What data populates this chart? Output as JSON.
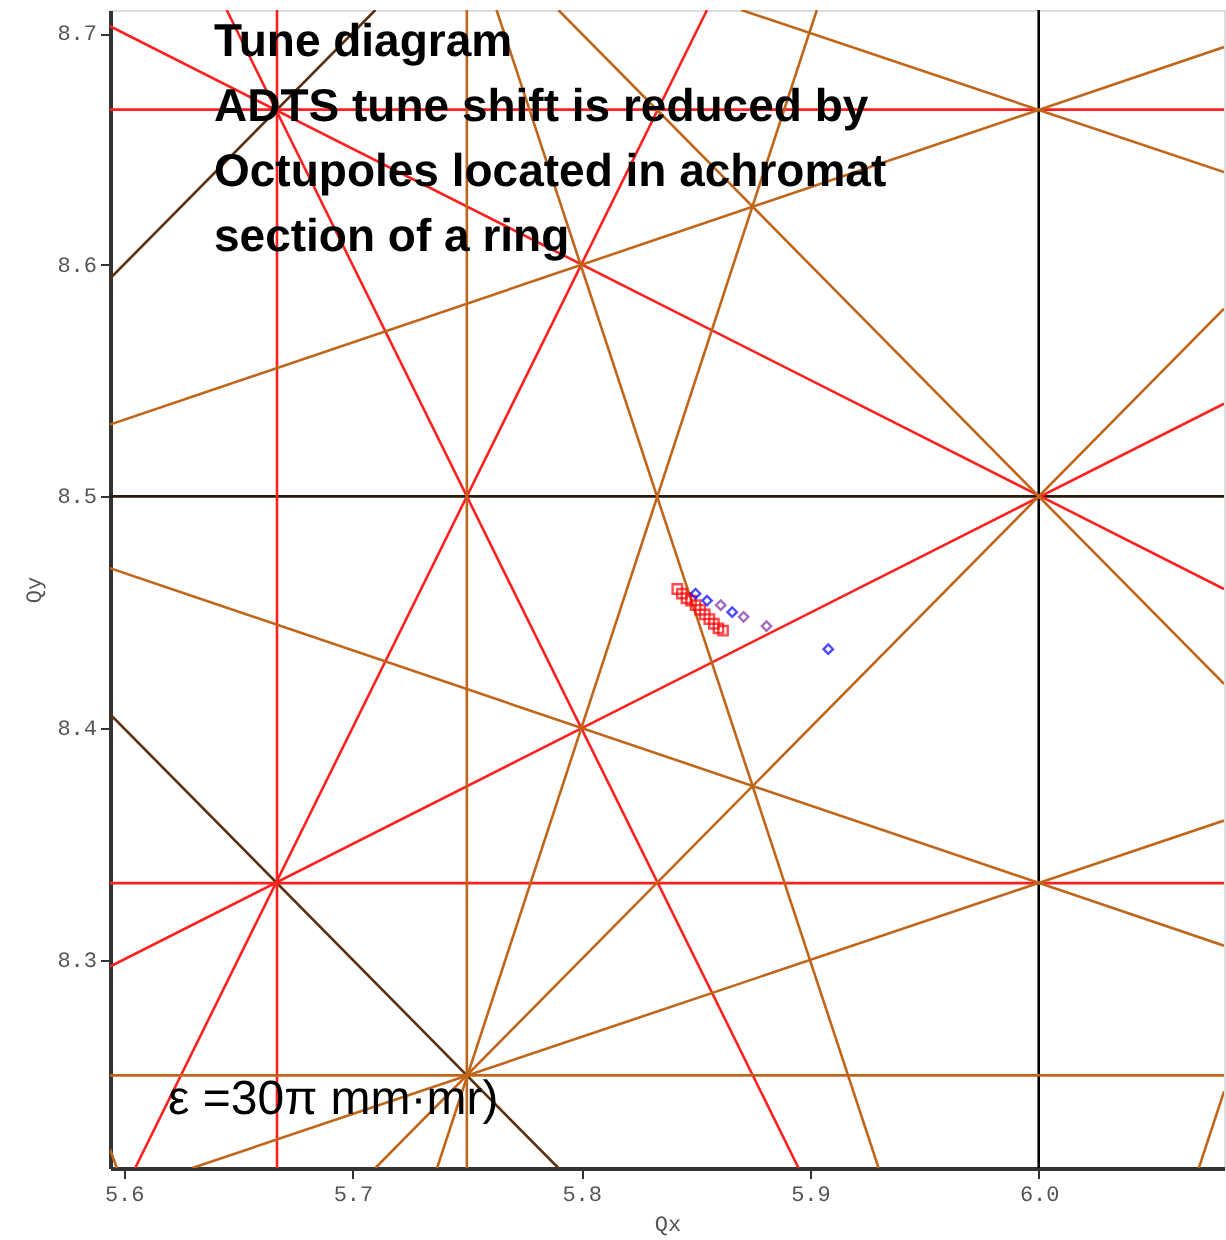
{
  "chart_data": {
    "type": "line",
    "title": "Tune diagram\nADTS tune shift is reduced by\nOctupoles located in achromat\nsection of a ring",
    "xlabel": "Qx",
    "ylabel": "Qy",
    "annotations": [
      "ε =30π mm·mr)"
    ],
    "xlim": [
      5.594,
      6.081
    ],
    "ylim": [
      8.21,
      8.71
    ],
    "xticks": [
      5.6,
      5.7,
      5.8,
      5.9,
      {
        "value": 6,
        "label": "6.0"
      }
    ],
    "yticks": [
      8.3,
      8.4,
      8.5,
      8.6,
      8.7
    ],
    "grid": false,
    "series": [
      {
        "color": "#000000",
        "x": [
          6.0,
          6.0
        ],
        "values": [
          8.21,
          8.71
        ]
      },
      {
        "color": "#2a1a0a",
        "x": [
          5.594,
          6.081
        ],
        "values": [
          8.5,
          8.5
        ]
      },
      {
        "color": "#5a3010",
        "x": [
          5.594,
          5.79
        ],
        "values": [
          8.406,
          8.21
        ]
      },
      {
        "color": "#5a3010",
        "x": [
          5.594,
          5.71
        ],
        "values": [
          8.594,
          8.71
        ]
      },
      {
        "color": "#ff2020",
        "x": [
          5.667,
          5.667
        ],
        "values": [
          8.21,
          8.71
        ]
      },
      {
        "color": "#ff2020",
        "x": [
          5.594,
          6.081
        ],
        "values": [
          8.333,
          8.333
        ]
      },
      {
        "color": "#ff2020",
        "x": [
          5.594,
          6.081
        ],
        "values": [
          8.667,
          8.667
        ]
      },
      {
        "color": "#ff2020",
        "x": [
          5.645,
          5.895
        ],
        "values": [
          8.71,
          8.21
        ]
      },
      {
        "color": "#ff2020",
        "x": [
          5.605,
          5.855
        ],
        "values": [
          8.21,
          8.71
        ]
      },
      {
        "color": "#ff2020",
        "x": [
          5.594,
          6.081
        ],
        "values": [
          8.703,
          8.46
        ]
      },
      {
        "color": "#ff2020",
        "x": [
          5.594,
          6.081
        ],
        "values": [
          8.297,
          8.54
        ]
      },
      {
        "color": "#c0661a",
        "x": [
          5.75,
          5.75
        ],
        "values": [
          8.21,
          8.71
        ]
      },
      {
        "color": "#c0661a",
        "x": [
          5.594,
          6.081
        ],
        "values": [
          8.25,
          8.25
        ]
      },
      {
        "color": "#c0661a",
        "x": [
          5.594,
          5.597
        ],
        "values": [
          8.218,
          8.21
        ]
      },
      {
        "color": "#c0661a",
        "x": [
          5.763,
          5.93
        ],
        "values": [
          8.71,
          8.21
        ]
      },
      {
        "color": "#c0661a",
        "x": [
          5.737,
          5.903
        ],
        "values": [
          8.21,
          8.71
        ]
      },
      {
        "color": "#c0661a",
        "x": [
          6.07,
          6.081
        ],
        "values": [
          8.21,
          8.243
        ]
      },
      {
        "color": "#c0661a",
        "x": [
          5.594,
          6.081
        ],
        "values": [
          8.469,
          8.306
        ]
      },
      {
        "color": "#c0661a",
        "x": [
          5.87,
          6.081
        ],
        "values": [
          8.71,
          8.64
        ]
      },
      {
        "color": "#c0661a",
        "x": [
          5.63,
          6.081
        ],
        "values": [
          8.21,
          8.36
        ]
      },
      {
        "color": "#c0661a",
        "x": [
          5.594,
          6.081
        ],
        "values": [
          8.531,
          8.694
        ]
      },
      {
        "color": "#c0661a",
        "x": [
          5.79,
          6.081
        ],
        "values": [
          8.71,
          8.419
        ]
      },
      {
        "color": "#c0661a",
        "x": [
          5.71,
          6.081
        ],
        "values": [
          8.21,
          8.581
        ]
      },
      {
        "type": "scatter",
        "marker": "square",
        "color": "#ff0000",
        "x": [
          5.842,
          5.844,
          5.846,
          5.848,
          5.85,
          5.852,
          5.854,
          5.856,
          5.858,
          5.86,
          5.862
        ],
        "values": [
          8.46,
          8.458,
          8.456,
          8.455,
          8.453,
          8.451,
          8.449,
          8.447,
          8.445,
          8.443,
          8.442
        ]
      },
      {
        "type": "scatter",
        "marker": "diamond",
        "color": "#8030a0",
        "x": [
          5.861,
          5.871,
          5.881
        ],
        "values": [
          8.453,
          8.448,
          8.444
        ]
      },
      {
        "type": "scatter",
        "marker": "diamond",
        "color": "#0000ff",
        "x": [
          5.85,
          5.855,
          5.866,
          5.881,
          5.908
        ],
        "values": [
          8.458,
          8.455,
          8.45,
          null,
          8.434
        ]
      }
    ]
  }
}
